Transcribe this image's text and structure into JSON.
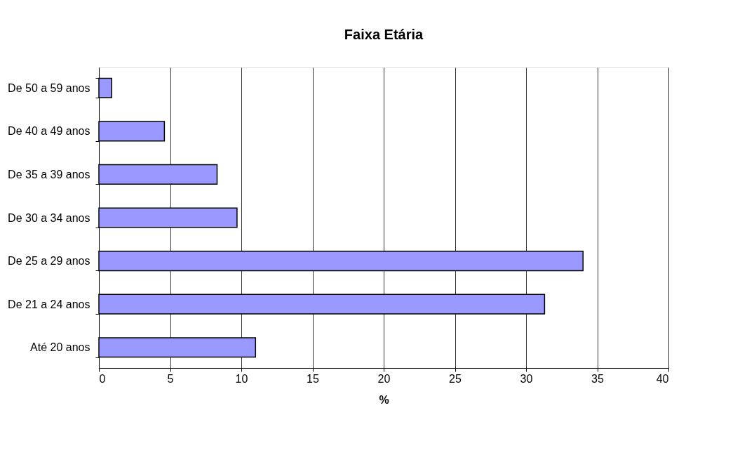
{
  "chart_data": {
    "type": "bar",
    "orientation": "horizontal",
    "title": "Faixa Etária",
    "xlabel": "%",
    "categories": [
      "De 50 a 59 anos",
      "De 40 a 49 anos",
      "De 35 a 39 anos",
      "De 30 a 34 anos",
      "De 25 a 29 anos",
      "De 21 a 24 anos",
      "Até 20 anos"
    ],
    "values": [
      0.9,
      4.6,
      8.3,
      9.7,
      34.0,
      31.3,
      11.0
    ],
    "color": "#9999ff",
    "xlim": [
      0,
      40
    ],
    "xticks": [
      0,
      5,
      10,
      15,
      20,
      25,
      30,
      35,
      40
    ],
    "grid": "x"
  }
}
